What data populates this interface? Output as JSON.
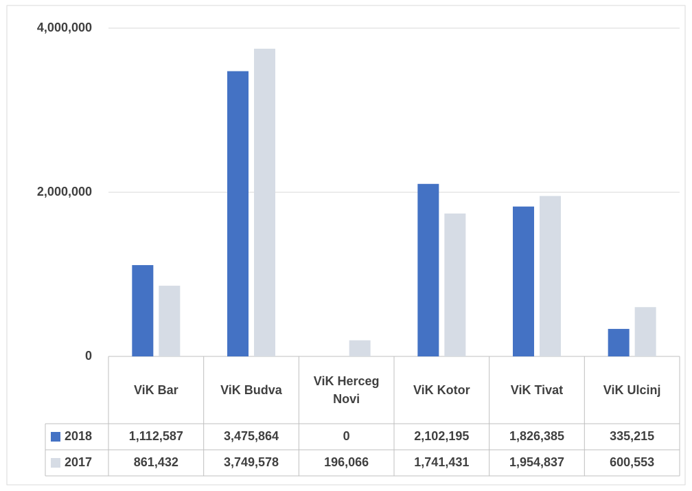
{
  "chart_data": {
    "type": "bar",
    "categories": [
      "ViK Bar",
      "ViK Budva",
      "ViK Herceg Novi",
      "ViK Kotor",
      "ViK Tivat",
      "ViK Ulcinj"
    ],
    "series": [
      {
        "name": "2018",
        "color": "#4472c4",
        "values": [
          1112587,
          3475864,
          0,
          2102195,
          1826385,
          335215
        ],
        "value_labels": [
          "1,112,587",
          "3,475,864",
          "0",
          "2,102,195",
          "1,826,385",
          "335,215"
        ]
      },
      {
        "name": "2017",
        "color": "#d6dce5",
        "values": [
          861432,
          3749578,
          196066,
          1741431,
          1954837,
          600553
        ],
        "value_labels": [
          "861,432",
          "3,749,578",
          "196,066",
          "1,741,431",
          "1,954,837",
          "600,553"
        ]
      }
    ],
    "ylim": [
      0,
      4000000
    ],
    "yticks": [
      0,
      {
        "value": 2000000,
        "label": "2,000,000"
      },
      {
        "value": 4000000,
        "label": "4,000,000"
      }
    ],
    "grid": true
  }
}
